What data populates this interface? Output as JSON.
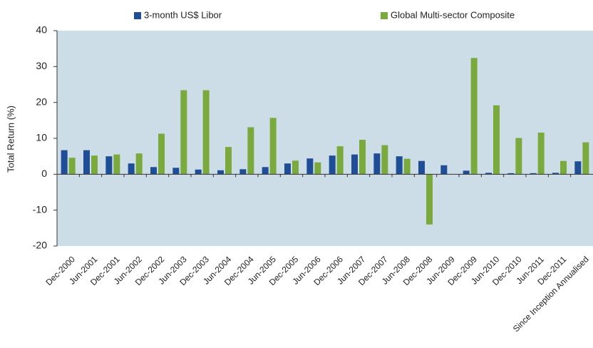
{
  "chart_data": {
    "type": "bar",
    "y_label": "Total Return (%)",
    "categories": [
      "Dec-2000",
      "Jun-2001",
      "Dec-2001",
      "Jun-2002",
      "Dec-2002",
      "Jun-2003",
      "Dec-2003",
      "Jun-2004",
      "Dec-2004",
      "Jun-2005",
      "Dec-2005",
      "Jun-2006",
      "Dec-2006",
      "Jun-2007",
      "Dec-2007",
      "Jun-2008",
      "Dec-2008",
      "Jun-2009",
      "Dec-2009",
      "Jun-2010",
      "Dec-2010",
      "Jun-2011",
      "Dec-2011",
      "Since Inception Annualised"
    ],
    "series": [
      {
        "name": "3-month US$ Libor",
        "color": "#1f4e96",
        "values": [
          6.7,
          6.7,
          5.0,
          3.0,
          2.0,
          1.8,
          1.3,
          1.1,
          1.4,
          2.0,
          3.0,
          4.4,
          5.2,
          5.5,
          5.8,
          5.0,
          3.7,
          2.5,
          1.0,
          0.4,
          0.3,
          0.3,
          0.4,
          3.6
        ]
      },
      {
        "name": "Global Multi-sector Composite",
        "color": "#7aaa3e",
        "values": [
          4.6,
          5.2,
          5.5,
          5.8,
          11.3,
          23.4,
          23.4,
          7.6,
          13.1,
          15.7,
          3.8,
          3.3,
          7.8,
          9.6,
          8.1,
          4.3,
          -14.0,
          0,
          32.4,
          19.2,
          10.1,
          11.6,
          3.7,
          8.9
        ]
      }
    ],
    "ylim": [
      -20,
      40
    ],
    "yticks": [
      -20,
      -10,
      0,
      10,
      20,
      30,
      40
    ],
    "plot_background": "#ccdde8"
  }
}
